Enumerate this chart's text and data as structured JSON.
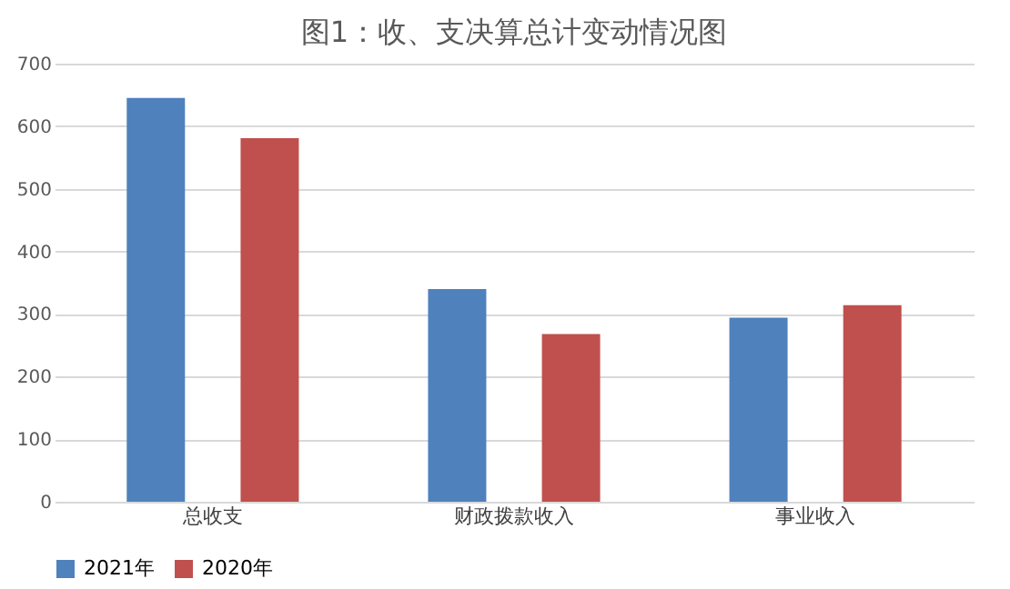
{
  "chart_data": {
    "type": "bar",
    "title": "图1：收、支决算总计变动情况图",
    "categories": [
      "总收支",
      "财政拨款收入",
      "事业收入"
    ],
    "series": [
      {
        "name": "2021年",
        "color": "#4f81bd",
        "values": [
          645,
          340,
          294
        ]
      },
      {
        "name": "2020年",
        "color": "#c0504d",
        "values": [
          581,
          268,
          314
        ]
      }
    ],
    "ylim": [
      0,
      700
    ],
    "yticks": [
      0,
      100,
      200,
      300,
      400,
      500,
      600,
      700
    ],
    "grid": "y",
    "legend": "bottom"
  }
}
